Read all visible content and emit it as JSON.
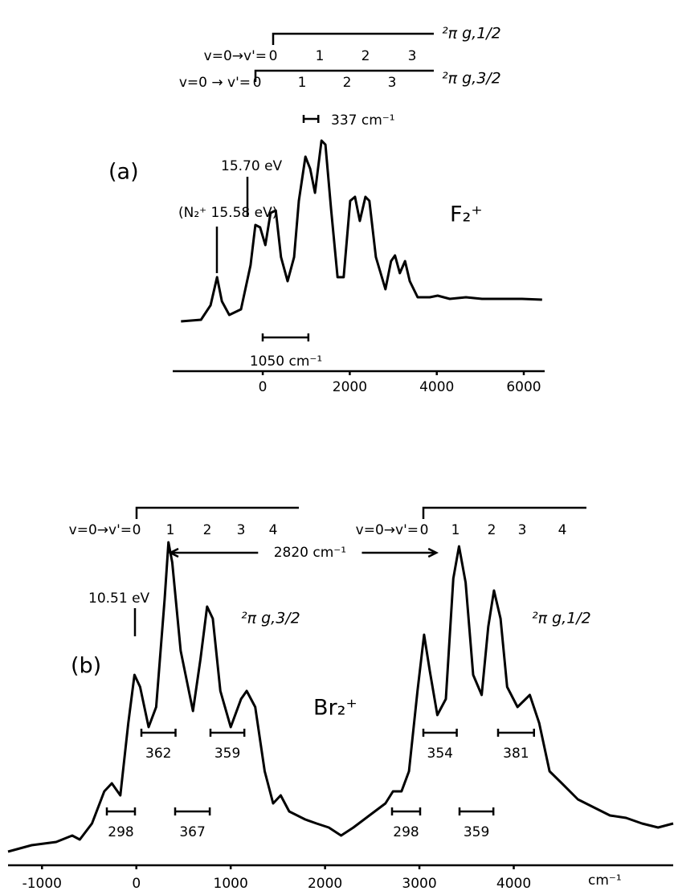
{
  "chart_data": [
    {
      "type": "line",
      "label": "(a)",
      "species": "F₂⁺",
      "color": "#000000",
      "x": [
        -1880,
        -1420,
        -1200,
        -1050,
        -940,
        -770,
        -500,
        -280,
        -170,
        -60,
        60,
        180,
        300,
        420,
        570,
        720,
        830,
        980,
        1090,
        1200,
        1350,
        1440,
        1570,
        1720,
        1860,
        2010,
        2120,
        2230,
        2360,
        2450,
        2600,
        2820,
        2950,
        3040,
        3150,
        3270,
        3380,
        3560,
        3840,
        4020,
        4300,
        4670,
        5040,
        5410,
        5960,
        6420
      ],
      "values": [
        10,
        12,
        30,
        65,
        35,
        18,
        25,
        80,
        130,
        127,
        105,
        145,
        148,
        90,
        60,
        90,
        160,
        215,
        200,
        170,
        235,
        230,
        150,
        65,
        65,
        160,
        165,
        135,
        165,
        160,
        90,
        50,
        85,
        92,
        70,
        85,
        60,
        40,
        40,
        42,
        38,
        40,
        38,
        38,
        38,
        37
      ],
      "xlim": [
        -2070,
        6480
      ],
      "ylim": [
        0,
        250
      ],
      "xticks": [
        0,
        2000,
        4000,
        6000
      ],
      "annotations": [
        "15.70 eV",
        "(N₂⁺ 15.58 eV)"
      ],
      "progressions": [
        {
          "prefix": "v=0→v'=",
          "levels": [
            0,
            1,
            2,
            3
          ],
          "state": "²π g,1/2"
        },
        {
          "prefix": "v=0 → v'=",
          "levels": [
            0,
            1,
            2,
            3
          ],
          "state": "²π g,3/2"
        }
      ],
      "intervals": [
        {
          "value": 337,
          "label": "337 cm⁻¹"
        },
        {
          "value": 1050,
          "label": "1050 cm⁻¹"
        }
      ]
    },
    {
      "type": "line",
      "label": "(b)",
      "species": "Br₂⁺",
      "color": "#000000",
      "x": [
        -1360,
        -1110,
        -850,
        -680,
        -600,
        -470,
        -340,
        -260,
        -170,
        -85,
        -20,
        40,
        130,
        210,
        300,
        340,
        380,
        470,
        600,
        680,
        750,
        810,
        890,
        1000,
        1110,
        1170,
        1260,
        1360,
        1450,
        1530,
        1620,
        1790,
        1910,
        2040,
        2170,
        2300,
        2470,
        2640,
        2720,
        2810,
        2890,
        2980,
        3050,
        3110,
        3190,
        3280,
        3360,
        3420,
        3490,
        3570,
        3660,
        3730,
        3790,
        3860,
        3930,
        4040,
        4170,
        4270,
        4380,
        4510,
        4680,
        4850,
        5020,
        5190,
        5360,
        5530,
        5690
      ],
      "values": [
        30,
        38,
        42,
        50,
        45,
        65,
        105,
        115,
        100,
        190,
        250,
        235,
        185,
        210,
        345,
        415,
        390,
        280,
        205,
        270,
        335,
        320,
        230,
        185,
        220,
        230,
        210,
        130,
        90,
        100,
        80,
        70,
        65,
        60,
        50,
        60,
        75,
        90,
        105,
        105,
        130,
        230,
        300,
        255,
        200,
        220,
        370,
        410,
        365,
        250,
        225,
        310,
        355,
        320,
        235,
        210,
        225,
        190,
        130,
        115,
        95,
        85,
        75,
        72,
        65,
        60,
        65
      ],
      "xlim": [
        -1360,
        5690
      ],
      "ylim": [
        0,
        430
      ],
      "xticks": [
        -1000,
        0,
        1000,
        2000,
        3000,
        4000
      ],
      "x_label": "cm⁻¹",
      "annotations": [
        "10.51 eV",
        "²π g,3/2",
        "²π g,1/2"
      ],
      "progressions": [
        {
          "prefix": "v=0→v'=",
          "levels": [
            0,
            1,
            2,
            3,
            4
          ]
        },
        {
          "prefix": "v=0→v'=",
          "levels": [
            0,
            1,
            2,
            3,
            4
          ]
        }
      ],
      "separation": {
        "value": 2820,
        "label": "2820 cm⁻¹"
      },
      "intervals": [
        362,
        359,
        298,
        367,
        354,
        381,
        298,
        359
      ]
    }
  ]
}
